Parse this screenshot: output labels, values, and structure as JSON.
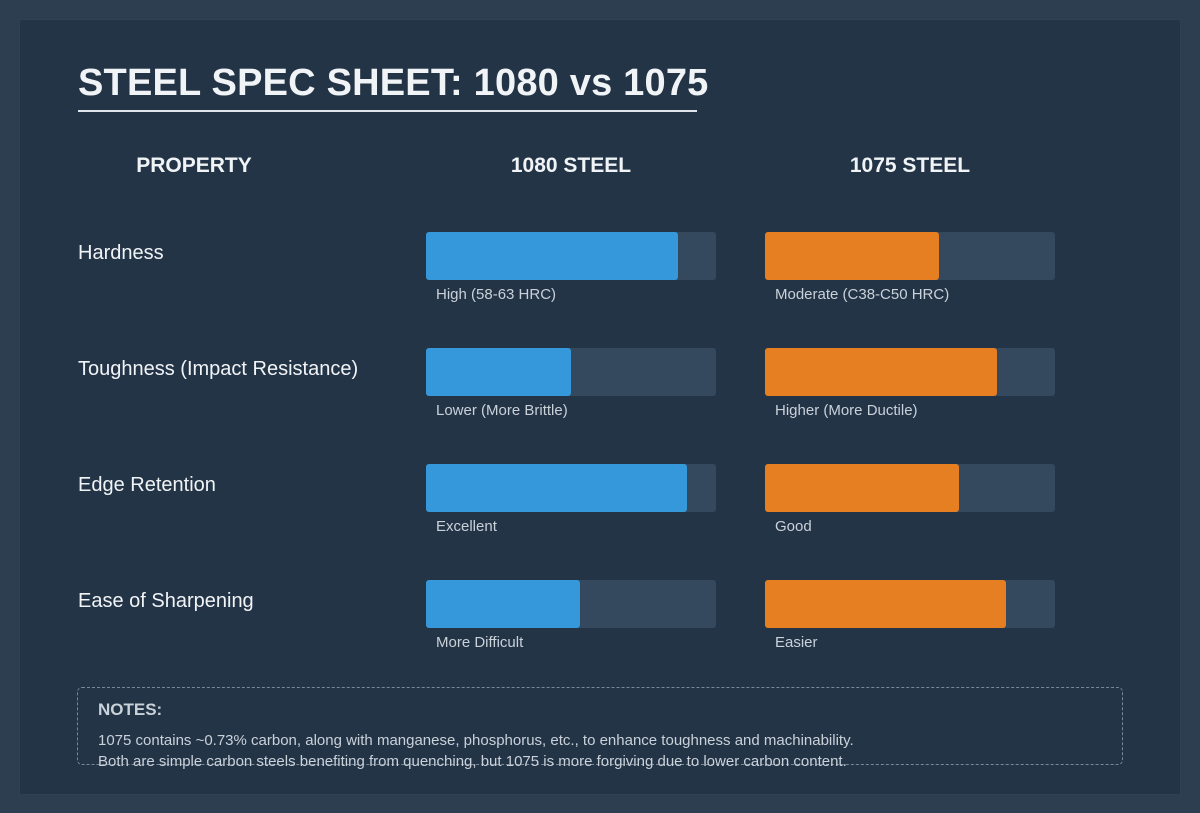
{
  "title": "STEEL SPEC SHEET: 1080 vs 1075",
  "headers": {
    "property": "PROPERTY",
    "steel_a": "1080 STEEL",
    "steel_b": "1075 STEEL"
  },
  "colors": {
    "steel_a": "#3498db",
    "steel_b": "#e67e22",
    "track": "#34495e",
    "background": "#2c3e50",
    "card": "#243447"
  },
  "rows": [
    {
      "property": "Hardness",
      "a_label": "High (58-63 HRC)",
      "b_label": "Moderate (C38-C50 HRC)",
      "a_pct": 87,
      "b_pct": 60
    },
    {
      "property": "Toughness (Impact Resistance)",
      "a_label": "Lower (More Brittle)",
      "b_label": "Higher (More Ductile)",
      "a_pct": 50,
      "b_pct": 80
    },
    {
      "property": "Edge Retention",
      "a_label": "Excellent",
      "b_label": "Good",
      "a_pct": 90,
      "b_pct": 67
    },
    {
      "property": "Ease of Sharpening",
      "a_label": "More Difficult",
      "b_label": "Easier",
      "a_pct": 53,
      "b_pct": 83
    }
  ],
  "notes": {
    "title": "NOTES:",
    "lines": [
      "1075 contains ~0.73% carbon, along with manganese, phosphorus, etc., to enhance toughness and machinability.",
      "Both are simple carbon steels benefiting from quenching, but 1075 is more forgiving due to lower carbon content."
    ]
  },
  "chart_data": {
    "type": "bar",
    "title": "STEEL SPEC SHEET: 1080 vs 1075",
    "orientation": "horizontal",
    "categories": [
      "Hardness",
      "Toughness (Impact Resistance)",
      "Edge Retention",
      "Ease of Sharpening"
    ],
    "series": [
      {
        "name": "1080 STEEL",
        "color": "#3498db",
        "values": [
          87,
          50,
          90,
          53
        ],
        "labels": [
          "High (58-63 HRC)",
          "Lower (More Brittle)",
          "Excellent",
          "More Difficult"
        ]
      },
      {
        "name": "1075 STEEL",
        "color": "#e67e22",
        "values": [
          60,
          80,
          67,
          83
        ],
        "labels": [
          "Moderate (C38-C50 HRC)",
          "Higher (More Ductile)",
          "Good",
          "Easier"
        ]
      }
    ],
    "xlim": [
      0,
      100
    ],
    "xlabel": "",
    "ylabel": "",
    "grid": false,
    "legend": "column headers"
  }
}
